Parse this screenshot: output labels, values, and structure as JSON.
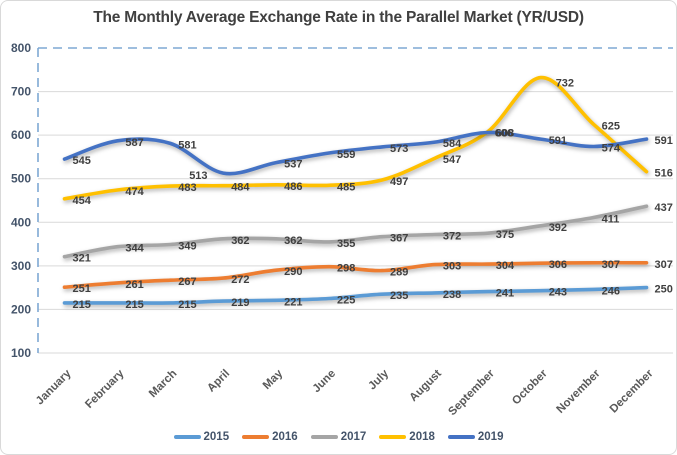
{
  "chart_data": {
    "type": "line",
    "title": "The Monthly Average Exchange Rate in the Parallel Market (YR/USD)",
    "categories": [
      "January",
      "February",
      "March",
      "April",
      "May",
      "June",
      "July",
      "August",
      "September",
      "October",
      "November",
      "December"
    ],
    "series": [
      {
        "name": "2015",
        "color": "#5B9BD5",
        "values": [
          215,
          215,
          215,
          219,
          221,
          225,
          235,
          238,
          241,
          243,
          246,
          250
        ]
      },
      {
        "name": "2016",
        "color": "#ED7D31",
        "values": [
          251,
          261,
          267,
          272,
          290,
          298,
          289,
          303,
          304,
          306,
          307,
          307
        ]
      },
      {
        "name": "2017",
        "color": "#A5A5A5",
        "values": [
          321,
          344,
          349,
          362,
          362,
          355,
          367,
          372,
          375,
          392,
          411,
          437
        ]
      },
      {
        "name": "2018",
        "color": "#FFC000",
        "values": [
          454,
          474,
          483,
          484,
          486,
          485,
          497,
          547,
          608,
          732,
          625,
          516
        ]
      },
      {
        "name": "2019",
        "color": "#4472C4",
        "values": [
          545,
          587,
          581,
          513,
          537,
          559,
          573,
          584,
          606,
          591,
          574,
          591
        ]
      }
    ],
    "ylim": [
      100,
      800
    ],
    "ytick_labels": [
      "100",
      "200",
      "300",
      "400",
      "500",
      "600",
      "700",
      "800"
    ],
    "grid": "horizontal",
    "legend_position": "bottom",
    "data_labels": "all-points",
    "line_style": "smooth"
  },
  "colors": {
    "title_text": "#404040",
    "data_label_text": "#3F3F3F",
    "ytick_text": "#44546A",
    "month_text": "#595959",
    "gridline": "#D9D9D9",
    "dashed_border": "#7FA8D4",
    "legend_text": "#44546A",
    "chart_border": "#D9D9D9"
  }
}
